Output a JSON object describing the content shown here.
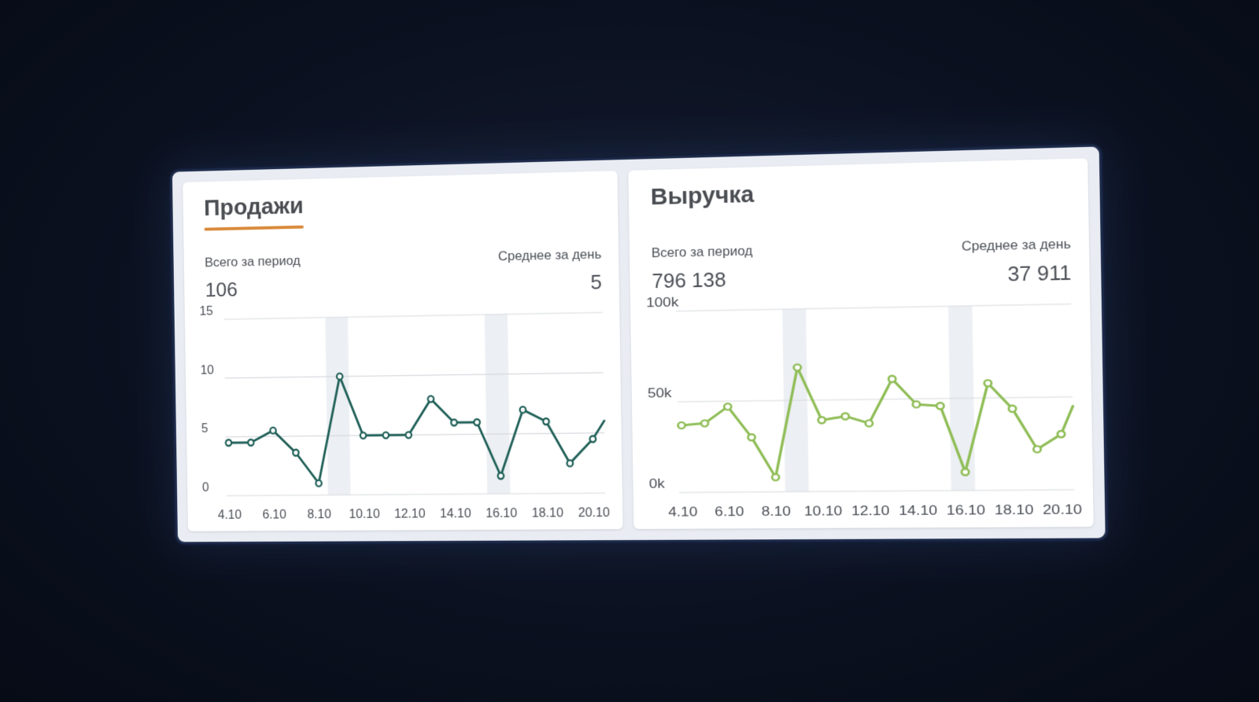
{
  "colors": {
    "sales_line": "#1e5f57",
    "revenue_line": "#8fbd56",
    "accent_underline": "#d98a3a",
    "grid": "#d6d9de",
    "weekend_band": "#eceff3"
  },
  "cards": [
    {
      "title": "Продажи",
      "total_label": "Всего за период",
      "total_value": "106",
      "avg_label": "Среднее за день",
      "avg_value": "5"
    },
    {
      "title": "Выручка",
      "total_label": "Всего за период",
      "total_value": "796 138",
      "avg_label": "Среднее за день",
      "avg_value": "37 911"
    }
  ],
  "chart_data": [
    {
      "type": "line",
      "title": "Продажи",
      "x_ticks": [
        "4.10",
        "6.10",
        "8.10",
        "10.10",
        "12.10",
        "14.10",
        "16.10",
        "18.10",
        "20.10"
      ],
      "y_ticks": [
        "0",
        "5",
        "10",
        "15"
      ],
      "ylim": [
        0,
        15
      ],
      "weekend_bands": [
        [
          8.4,
          9.4
        ],
        [
          15.4,
          16.4
        ]
      ],
      "grid": true,
      "series": [
        {
          "x": [
            4,
            5,
            6,
            7,
            8,
            9,
            10,
            11,
            12,
            13,
            14,
            15,
            16,
            17,
            18,
            19,
            20,
            20.5
          ],
          "values": [
            4.5,
            4.5,
            5.5,
            3.6,
            1.0,
            10.0,
            5.0,
            5.0,
            5.0,
            8.0,
            6.0,
            6.0,
            1.5,
            7.0,
            6.0,
            2.5,
            4.5,
            6.0
          ]
        }
      ]
    },
    {
      "type": "line",
      "title": "Выручка",
      "x_ticks": [
        "4.10",
        "6.10",
        "8.10",
        "10.10",
        "12.10",
        "14.10",
        "16.10",
        "18.10",
        "20.10"
      ],
      "y_ticks": [
        "0k",
        "50k",
        "100k"
      ],
      "ylim": [
        0,
        100000
      ],
      "weekend_bands": [
        [
          8.4,
          9.4
        ],
        [
          15.4,
          16.4
        ]
      ],
      "grid": true,
      "series": [
        {
          "x": [
            4,
            5,
            6,
            7,
            8,
            9,
            10,
            11,
            12,
            13,
            14,
            15,
            16,
            17,
            18,
            19,
            20,
            20.5
          ],
          "values": [
            37000,
            38000,
            47000,
            30000,
            8000,
            68000,
            39000,
            41000,
            37000,
            61000,
            47000,
            46000,
            10000,
            58000,
            44000,
            22000,
            30000,
            45000
          ]
        }
      ]
    }
  ]
}
